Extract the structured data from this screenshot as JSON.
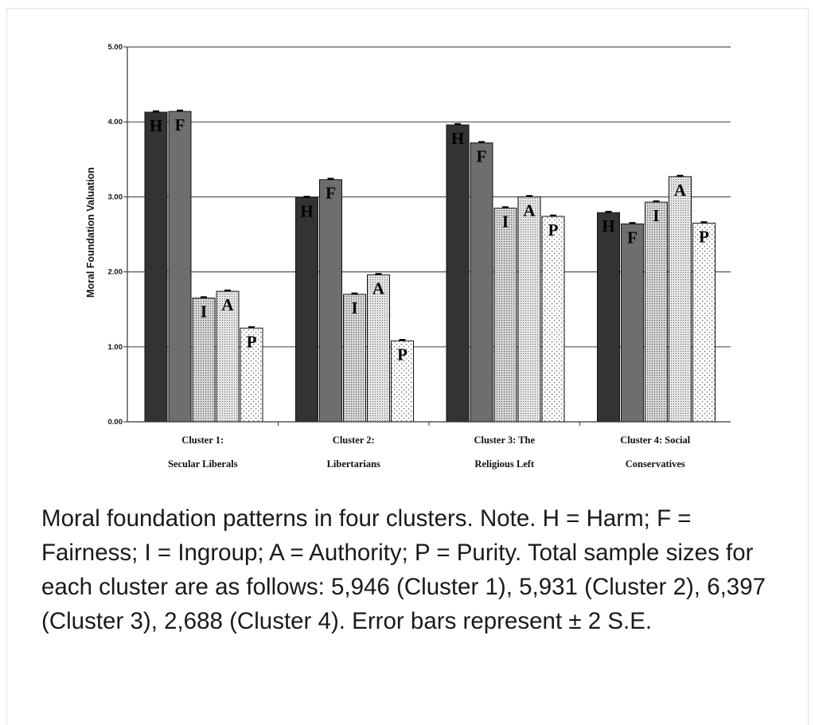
{
  "chart_data": {
    "type": "bar",
    "ylabel": "Moral Foundation Valuation",
    "ylim": [
      0,
      5
    ],
    "yticks": [
      "0.00",
      "1.00",
      "2.00",
      "3.00",
      "4.00",
      "5.00"
    ],
    "grid": true,
    "categories": [
      [
        "Cluster 1:",
        "Secular Liberals"
      ],
      [
        "Cluster 2:",
        "Libertarians"
      ],
      [
        "Cluster 3: The",
        "Religious Left"
      ],
      [
        "Cluster 4: Social",
        "Conservatives"
      ]
    ],
    "series": [
      {
        "name": "Harm",
        "letter": "H",
        "values": [
          4.13,
          2.99,
          3.96,
          2.79
        ],
        "fill": "#333333"
      },
      {
        "name": "Fairness",
        "letter": "F",
        "values": [
          4.14,
          3.23,
          3.72,
          2.64
        ],
        "fill": "#6e6e6e"
      },
      {
        "name": "Ingroup",
        "letter": "I",
        "values": [
          1.65,
          1.7,
          2.85,
          2.93
        ],
        "fill": "pattern-dense"
      },
      {
        "name": "Authority",
        "letter": "A",
        "values": [
          1.74,
          1.96,
          3.0,
          3.27
        ],
        "fill": "pattern-medium"
      },
      {
        "name": "Purity",
        "letter": "P",
        "values": [
          1.25,
          1.08,
          2.74,
          2.65
        ],
        "fill": "pattern-sparse"
      }
    ]
  },
  "caption": "Moral foundation patterns in four clusters. Note. H = Harm; F = Fairness; I = Ingroup; A = Authority; P = Purity. Total sample sizes for each cluster are as follows: 5,946 (Cluster 1), 5,931 (Cluster 2), 6,397 (Cluster 3), 2,688 (Cluster 4). Error bars represent ± 2 S.E."
}
